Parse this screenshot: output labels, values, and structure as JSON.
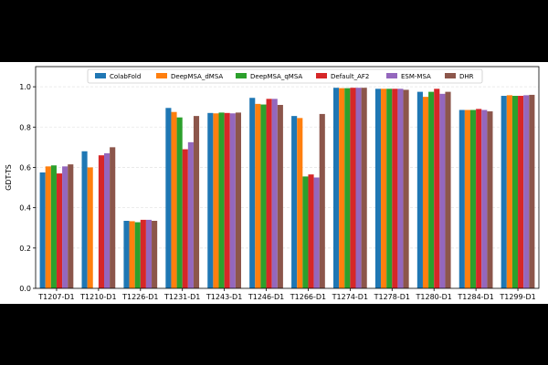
{
  "chart_data": {
    "type": "bar",
    "title": "",
    "xlabel": "",
    "ylabel": "GDT-TS",
    "ylim": [
      0,
      1.1
    ],
    "yticks": [
      0.0,
      0.2,
      0.4,
      0.6,
      0.8,
      1.0
    ],
    "grid": true,
    "legend_position": "top",
    "categories": [
      "T1207-D1",
      "T1210-D1",
      "T1226-D1",
      "T1231-D1",
      "T1243-D1",
      "T1246-D1",
      "T1266-D1",
      "T1274-D1",
      "T1278-D1",
      "T1280-D1",
      "T1284-D1",
      "T1299-D1"
    ],
    "series": [
      {
        "name": "ColabFold",
        "color": "#1f77b4",
        "values": [
          0.575,
          0.68,
          0.335,
          0.895,
          0.87,
          0.945,
          0.855,
          0.995,
          0.99,
          0.975,
          0.885,
          0.955
        ]
      },
      {
        "name": "DeepMSA_dMSA",
        "color": "#ff7f0e",
        "values": [
          0.605,
          0.6,
          0.333,
          0.875,
          0.868,
          0.915,
          0.845,
          0.993,
          0.99,
          0.95,
          0.885,
          0.958
        ]
      },
      {
        "name": "DeepMSA_qMSA",
        "color": "#2ca02c",
        "values": [
          0.61,
          0.0,
          0.328,
          0.848,
          0.872,
          0.912,
          0.555,
          0.993,
          0.99,
          0.975,
          0.885,
          0.955
        ]
      },
      {
        "name": "Default_AF2",
        "color": "#d62728",
        "values": [
          0.57,
          0.66,
          0.34,
          0.69,
          0.87,
          0.94,
          0.565,
          0.995,
          0.99,
          0.99,
          0.89,
          0.955
        ]
      },
      {
        "name": "ESM-MSA",
        "color": "#9467bd",
        "values": [
          0.605,
          0.67,
          0.34,
          0.725,
          0.868,
          0.94,
          0.55,
          0.995,
          0.99,
          0.965,
          0.885,
          0.958
        ]
      },
      {
        "name": "DHR",
        "color": "#8c564b",
        "values": [
          0.615,
          0.7,
          0.335,
          0.855,
          0.872,
          0.91,
          0.865,
          0.995,
          0.985,
          0.975,
          0.878,
          0.96
        ]
      }
    ]
  }
}
